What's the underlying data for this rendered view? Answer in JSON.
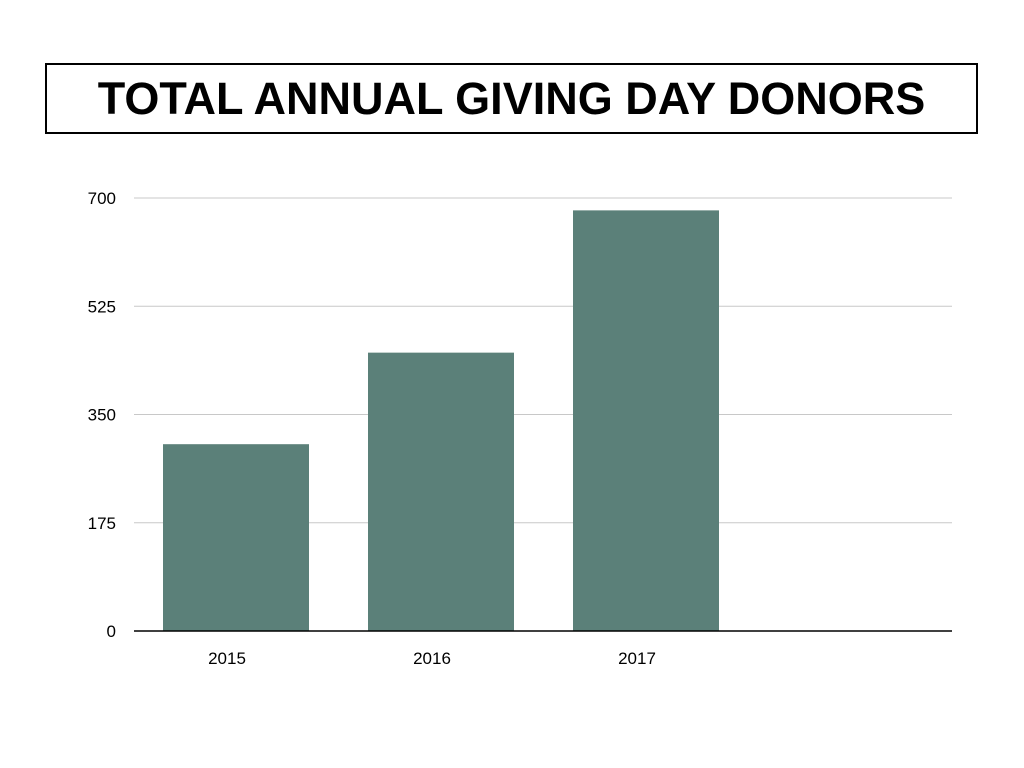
{
  "chart_data": {
    "type": "bar",
    "title": "TOTAL ANNUAL GIVING DAY DONORS",
    "categories": [
      "2015",
      "2016",
      "2017"
    ],
    "values": [
      302,
      450,
      680
    ],
    "yticks": [
      "0",
      "175",
      "350",
      "525",
      "700"
    ],
    "ylim": [
      0,
      700
    ],
    "grid": true,
    "xlabel": "",
    "ylabel": "",
    "bar_color": "#5B8079",
    "grid_color": "#C8C8C8",
    "axis_color": "#000000"
  }
}
